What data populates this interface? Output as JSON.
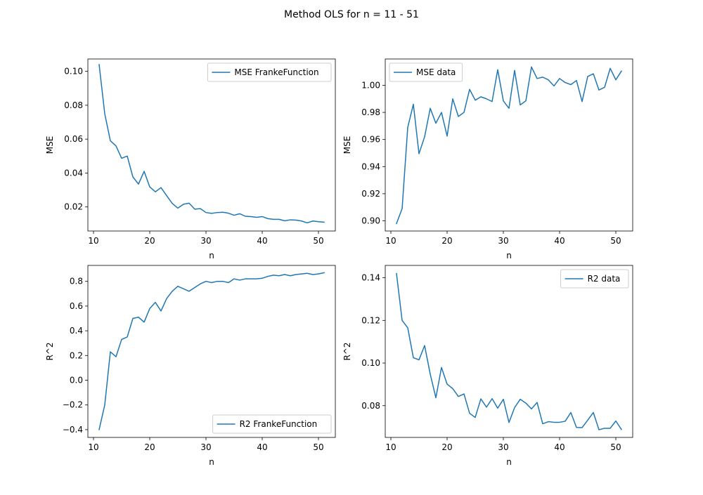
{
  "figure": {
    "title": "Method OLS for n = 11 - 51"
  },
  "chart_data": [
    {
      "type": "line",
      "xlabel": "n",
      "ylabel": "MSE",
      "xlim": [
        9,
        53
      ],
      "ylim": [
        0.0058,
        0.1073
      ],
      "xticks": [
        10,
        20,
        30,
        40,
        50
      ],
      "yticks": [
        0.02,
        0.04,
        0.06,
        0.08,
        0.1
      ],
      "ytick_labels": [
        "0.02",
        "0.04",
        "0.06",
        "0.08",
        "0.10"
      ],
      "legend_loc": "upper-right",
      "color": "#1f77b4",
      "series": [
        {
          "name": "MSE FrankeFunction",
          "x": [
            11,
            12,
            13,
            14,
            15,
            16,
            17,
            18,
            19,
            20,
            21,
            22,
            23,
            24,
            25,
            26,
            27,
            28,
            29,
            30,
            31,
            32,
            33,
            34,
            35,
            36,
            37,
            38,
            39,
            40,
            41,
            42,
            43,
            44,
            45,
            46,
            47,
            48,
            49,
            50,
            51
          ],
          "y": [
            0.104,
            0.075,
            0.059,
            0.056,
            0.0487,
            0.05,
            0.0377,
            0.0335,
            0.041,
            0.0318,
            0.0289,
            0.0314,
            0.0267,
            0.0221,
            0.0193,
            0.0216,
            0.0222,
            0.0187,
            0.019,
            0.0167,
            0.0162,
            0.0167,
            0.0169,
            0.0163,
            0.0151,
            0.016,
            0.0145,
            0.0143,
            0.0139,
            0.0143,
            0.0131,
            0.0127,
            0.0127,
            0.0118,
            0.0124,
            0.0122,
            0.0117,
            0.0106,
            0.0117,
            0.0113,
            0.011
          ]
        }
      ]
    },
    {
      "type": "line",
      "xlabel": "n",
      "ylabel": "MSE",
      "xlim": [
        9,
        53
      ],
      "ylim": [
        0.8925,
        1.0194
      ],
      "xticks": [
        10,
        20,
        30,
        40,
        50
      ],
      "yticks": [
        0.9,
        0.92,
        0.94,
        0.96,
        0.98,
        1.0
      ],
      "ytick_labels": [
        "0.90",
        "0.92",
        "0.94",
        "0.96",
        "0.98",
        "1.00"
      ],
      "legend_loc": "upper-left",
      "color": "#1f77b4",
      "series": [
        {
          "name": "MSE data",
          "x": [
            11,
            12,
            13,
            14,
            15,
            16,
            17,
            18,
            19,
            20,
            21,
            22,
            23,
            24,
            25,
            26,
            27,
            28,
            29,
            30,
            31,
            32,
            33,
            34,
            35,
            36,
            37,
            38,
            39,
            40,
            41,
            42,
            43,
            44,
            45,
            46,
            47,
            48,
            49,
            50,
            51
          ],
          "y": [
            0.898,
            0.909,
            0.969,
            0.986,
            0.9495,
            0.962,
            0.983,
            0.972,
            0.98,
            0.9625,
            0.99,
            0.977,
            0.98,
            0.997,
            0.989,
            0.9915,
            0.99,
            0.988,
            1.0115,
            0.9885,
            0.983,
            1.011,
            0.9855,
            0.9885,
            1.0135,
            1.005,
            1.006,
            1.004,
            0.9995,
            1.005,
            1.002,
            1.0005,
            1.0035,
            0.988,
            1.0065,
            1.0085,
            0.9965,
            0.9985,
            1.0125,
            1.004,
            1.0105
          ]
        }
      ]
    },
    {
      "type": "line",
      "xlabel": "n",
      "ylabel": "R^2",
      "xlim": [
        9,
        53
      ],
      "ylim": [
        -0.463,
        0.929
      ],
      "xticks": [
        10,
        20,
        30,
        40,
        50
      ],
      "yticks": [
        -0.4,
        -0.2,
        0.0,
        0.2,
        0.4,
        0.6,
        0.8
      ],
      "ytick_labels": [
        "−0.4",
        "−0.2",
        "0.0",
        "0.2",
        "0.4",
        "0.6",
        "0.8"
      ],
      "legend_loc": "lower-right",
      "color": "#1f77b4",
      "series": [
        {
          "name": "R2 FrankeFunction",
          "x": [
            11,
            12,
            13,
            14,
            15,
            16,
            17,
            18,
            19,
            20,
            21,
            22,
            23,
            24,
            25,
            26,
            27,
            28,
            29,
            30,
            31,
            32,
            33,
            34,
            35,
            36,
            37,
            38,
            39,
            40,
            41,
            42,
            43,
            44,
            45,
            46,
            47,
            48,
            49,
            50,
            51
          ],
          "y": [
            -0.4,
            -0.2,
            0.23,
            0.19,
            0.33,
            0.35,
            0.5,
            0.51,
            0.47,
            0.58,
            0.63,
            0.56,
            0.66,
            0.72,
            0.76,
            0.74,
            0.72,
            0.75,
            0.78,
            0.8,
            0.79,
            0.8,
            0.8,
            0.79,
            0.82,
            0.81,
            0.82,
            0.82,
            0.82,
            0.825,
            0.84,
            0.85,
            0.845,
            0.855,
            0.845,
            0.855,
            0.86,
            0.865,
            0.855,
            0.86,
            0.87
          ]
        }
      ]
    },
    {
      "type": "line",
      "xlabel": "n",
      "ylabel": "R^2",
      "xlim": [
        9,
        53
      ],
      "ylim": [
        0.0651,
        0.1458
      ],
      "xticks": [
        10,
        20,
        30,
        40,
        50
      ],
      "yticks": [
        0.08,
        0.1,
        0.12,
        0.14
      ],
      "ytick_labels": [
        "0.08",
        "0.10",
        "0.12",
        "0.14"
      ],
      "legend_loc": "upper-right",
      "color": "#1f77b4",
      "series": [
        {
          "name": "R2 data",
          "x": [
            11,
            12,
            13,
            14,
            15,
            16,
            17,
            18,
            19,
            20,
            21,
            22,
            23,
            24,
            25,
            26,
            27,
            28,
            29,
            30,
            31,
            32,
            33,
            34,
            35,
            36,
            37,
            38,
            39,
            40,
            41,
            42,
            43,
            44,
            45,
            46,
            47,
            48,
            49,
            50,
            51
          ],
          "y": [
            0.142,
            0.12,
            0.1165,
            0.1025,
            0.1015,
            0.1082,
            0.0948,
            0.0837,
            0.0979,
            0.0901,
            0.088,
            0.0843,
            0.0855,
            0.0764,
            0.0745,
            0.0832,
            0.0793,
            0.0833,
            0.0788,
            0.083,
            0.0721,
            0.0791,
            0.083,
            0.0812,
            0.0785,
            0.0815,
            0.0715,
            0.0725,
            0.0722,
            0.0722,
            0.0727,
            0.0768,
            0.0698,
            0.0697,
            0.0732,
            0.0768,
            0.0687,
            0.0694,
            0.0694,
            0.0728,
            0.0688
          ]
        }
      ]
    }
  ]
}
